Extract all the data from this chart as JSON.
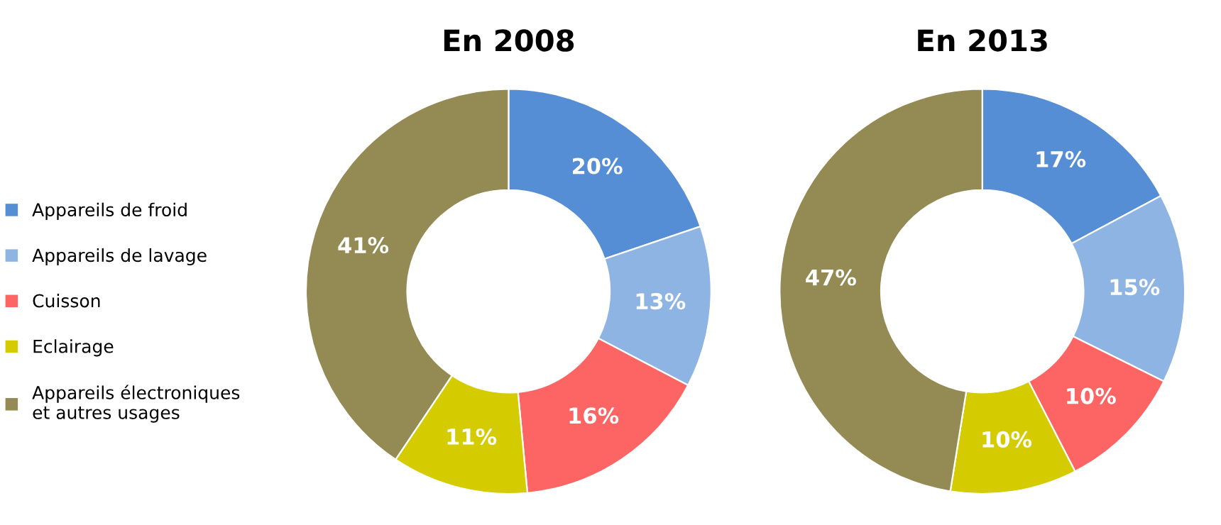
{
  "chart_data": [
    {
      "type": "donut",
      "title": "En 2008",
      "categories": [
        "Appareils de froid",
        "Appareils de lavage",
        "Cuisson",
        "Eclairage",
        "Appareils électroniques\net autres usages"
      ],
      "values": [
        20,
        13,
        16,
        11,
        41
      ],
      "colors": [
        "#558ed5",
        "#8eb4e3",
        "#fd6464",
        "#d4cc00",
        "#948a54"
      ],
      "value_labels": [
        "20%",
        "13%",
        "16%",
        "11%",
        "41%"
      ],
      "legend": "left"
    },
    {
      "type": "donut",
      "title": "En 2013",
      "categories": [
        null,
        null,
        null,
        null,
        null
      ],
      "values": [
        17,
        15,
        10,
        10,
        47
      ],
      "colors": [
        "#558ed5",
        "#8eb4e3",
        "#fd6464",
        "#d4cc00",
        "#948a54"
      ],
      "value_labels": [
        "17%",
        "15%",
        "10%",
        "10%",
        "47%"
      ]
    }
  ]
}
